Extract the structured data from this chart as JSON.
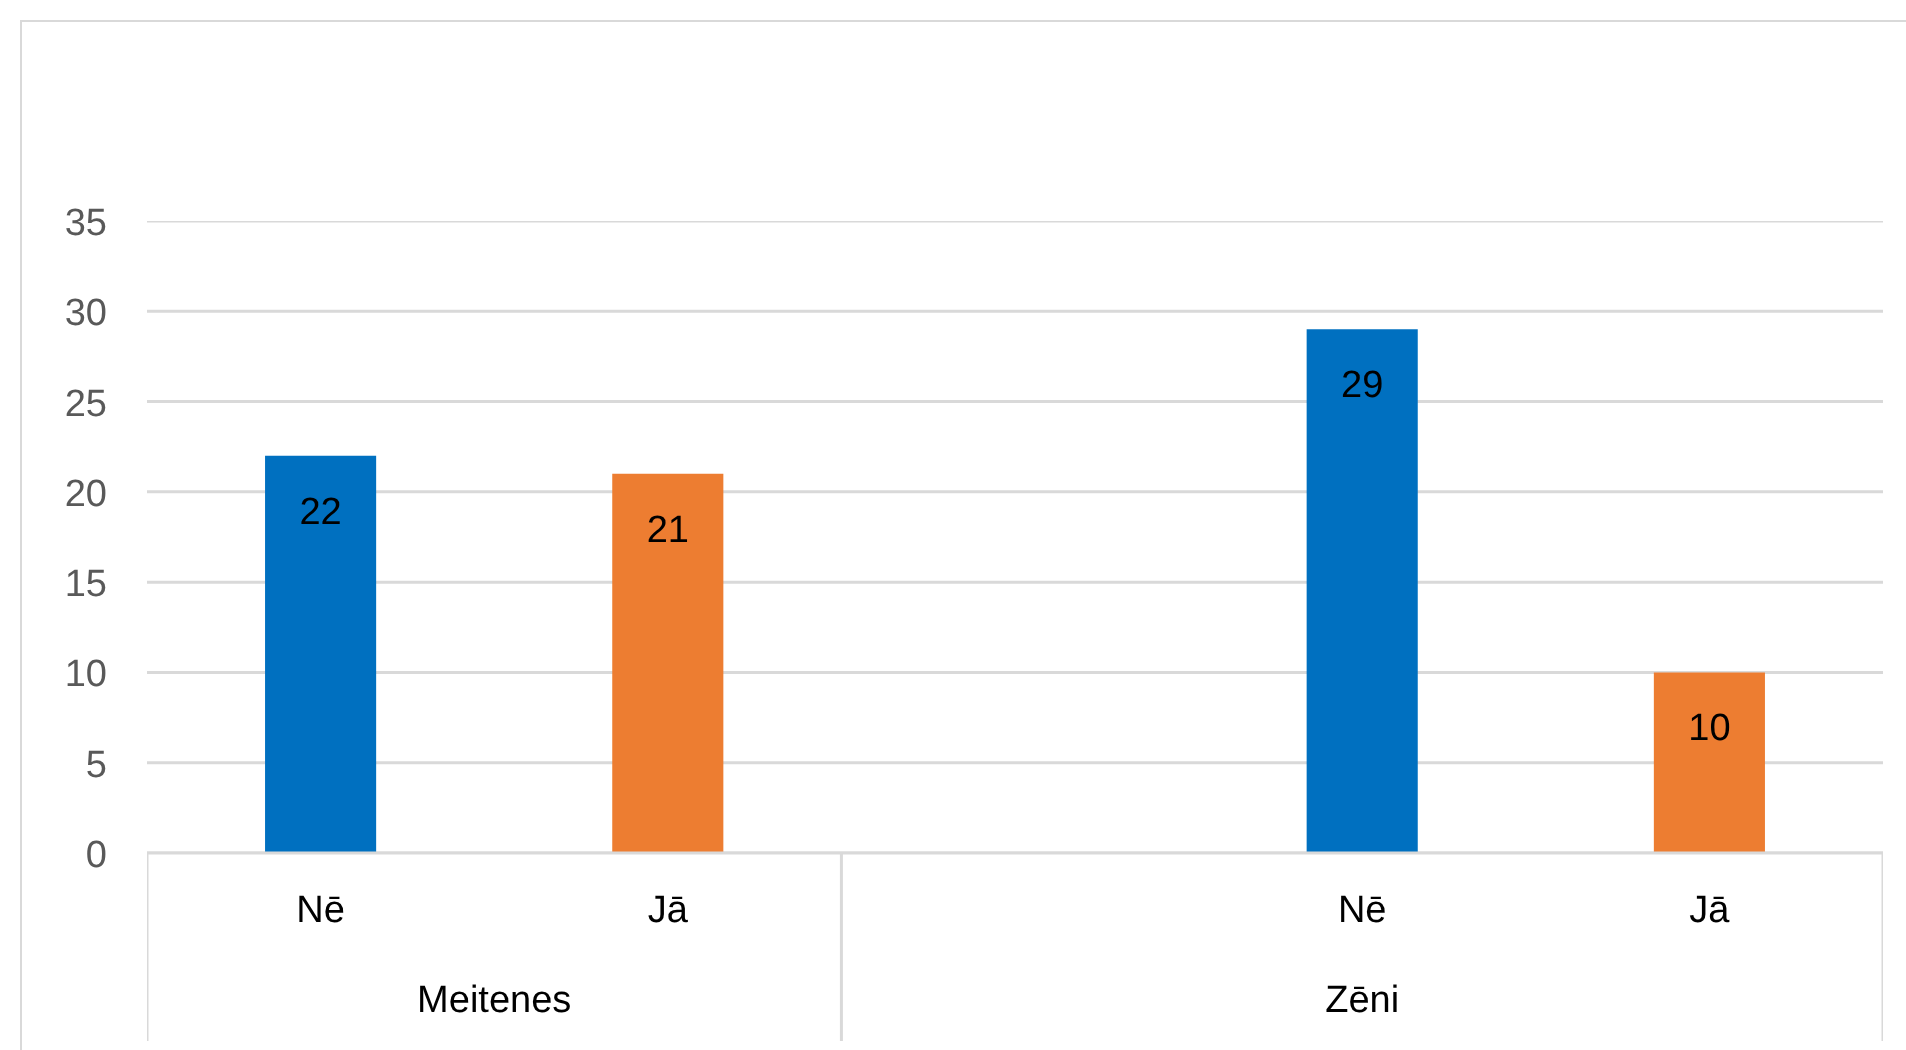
{
  "chart_data": {
    "type": "bar",
    "categories": [
      "Nē",
      "Jā",
      null,
      "Nē",
      "Jā"
    ],
    "values": [
      22,
      21,
      null,
      29,
      10
    ],
    "colors": [
      "#0070c0",
      "#ed7d31",
      null,
      "#0070c0",
      "#ed7d31"
    ],
    "ylim": [
      0,
      35
    ],
    "yticks": [
      0,
      5,
      10,
      15,
      20,
      25,
      30,
      35
    ],
    "grid": "y",
    "data_labels": true,
    "annotations": [
      "Meitenes",
      "Zēni"
    ]
  }
}
